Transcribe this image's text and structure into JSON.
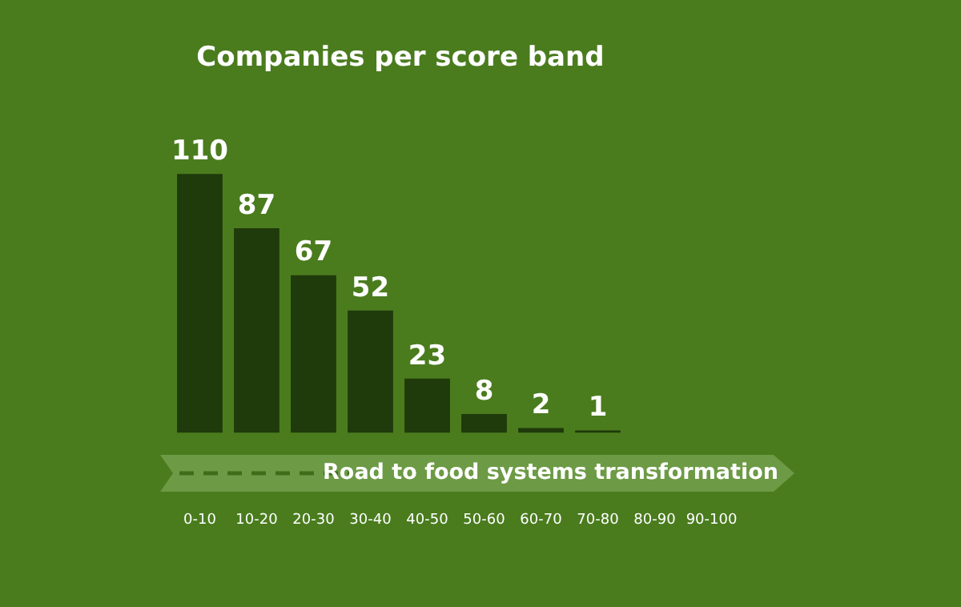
{
  "chart_data": {
    "type": "bar",
    "title": "Companies per score band",
    "categories": [
      "0-10",
      "10-20",
      "20-30",
      "30-40",
      "40-50",
      "50-60",
      "60-70",
      "70-80",
      "80-90",
      "90-100"
    ],
    "values": [
      110,
      87,
      67,
      52,
      23,
      8,
      2,
      1,
      null,
      null
    ],
    "color": "#1f3a0b",
    "data_labels": true,
    "grid": false,
    "legend": false,
    "annotations": [
      "Road to food systems transformation"
    ]
  }
}
